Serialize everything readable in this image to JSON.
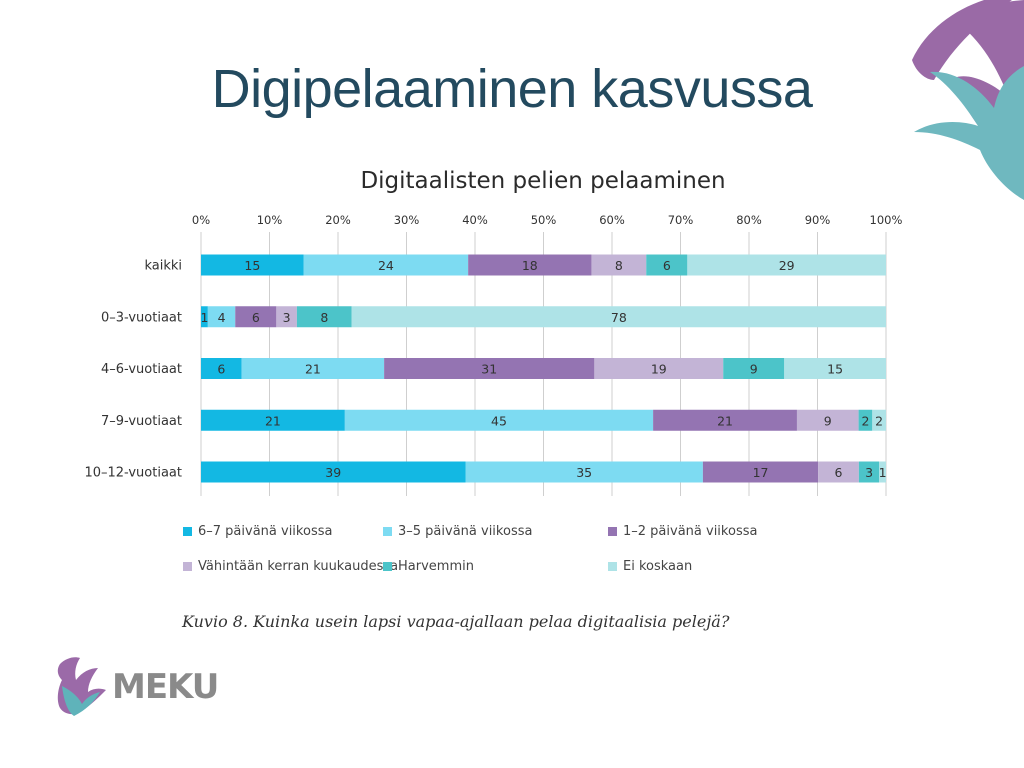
{
  "slide": {
    "title": "Digipelaaminen kasvussa",
    "caption": "Kuvio 8. Kuinka usein lapsi vapaa-ajallaan pelaa digitaalisia pelejä?",
    "logo_text": "MEKU"
  },
  "colors": {
    "title": "#234a5f",
    "deco_purple": "#9a6aa6",
    "deco_teal": "#6fb8bf",
    "logo_purple": "#9b6aa8",
    "logo_teal": "#5fb3ba"
  },
  "chart_data": {
    "type": "bar",
    "orientation": "horizontal",
    "stacked": true,
    "title": "Digitaalisten pelien pelaaminen",
    "xlim": [
      0,
      100
    ],
    "x_ticks": [
      "0%",
      "10%",
      "20%",
      "30%",
      "40%",
      "50%",
      "60%",
      "70%",
      "80%",
      "90%",
      "100%"
    ],
    "grid": true,
    "legend_position": "bottom",
    "categories": [
      "kaikki",
      "0–3-vuotiaat",
      "4–6-vuotiaat",
      "7–9-vuotiaat",
      "10–12-vuotiaat"
    ],
    "series": [
      {
        "name": "6–7 päivänä viikossa",
        "color": "#13b8e3",
        "values": [
          15,
          1,
          6,
          21,
          39
        ]
      },
      {
        "name": "3–5 päivänä viikossa",
        "color": "#7ddbf2",
        "values": [
          24,
          4,
          21,
          45,
          35
        ]
      },
      {
        "name": "1–2 päivänä viikossa",
        "color": "#9474b2",
        "values": [
          18,
          6,
          31,
          21,
          17
        ]
      },
      {
        "name": "Vähintään kerran kuukaudessa",
        "color": "#c3b4d6",
        "values": [
          8,
          3,
          19,
          9,
          6
        ]
      },
      {
        "name": "Harvemmin",
        "color": "#4cc4c9",
        "values": [
          6,
          8,
          9,
          2,
          3
        ]
      },
      {
        "name": "Ei koskaan",
        "color": "#aee3e7",
        "values": [
          29,
          78,
          15,
          2,
          1
        ]
      }
    ]
  }
}
